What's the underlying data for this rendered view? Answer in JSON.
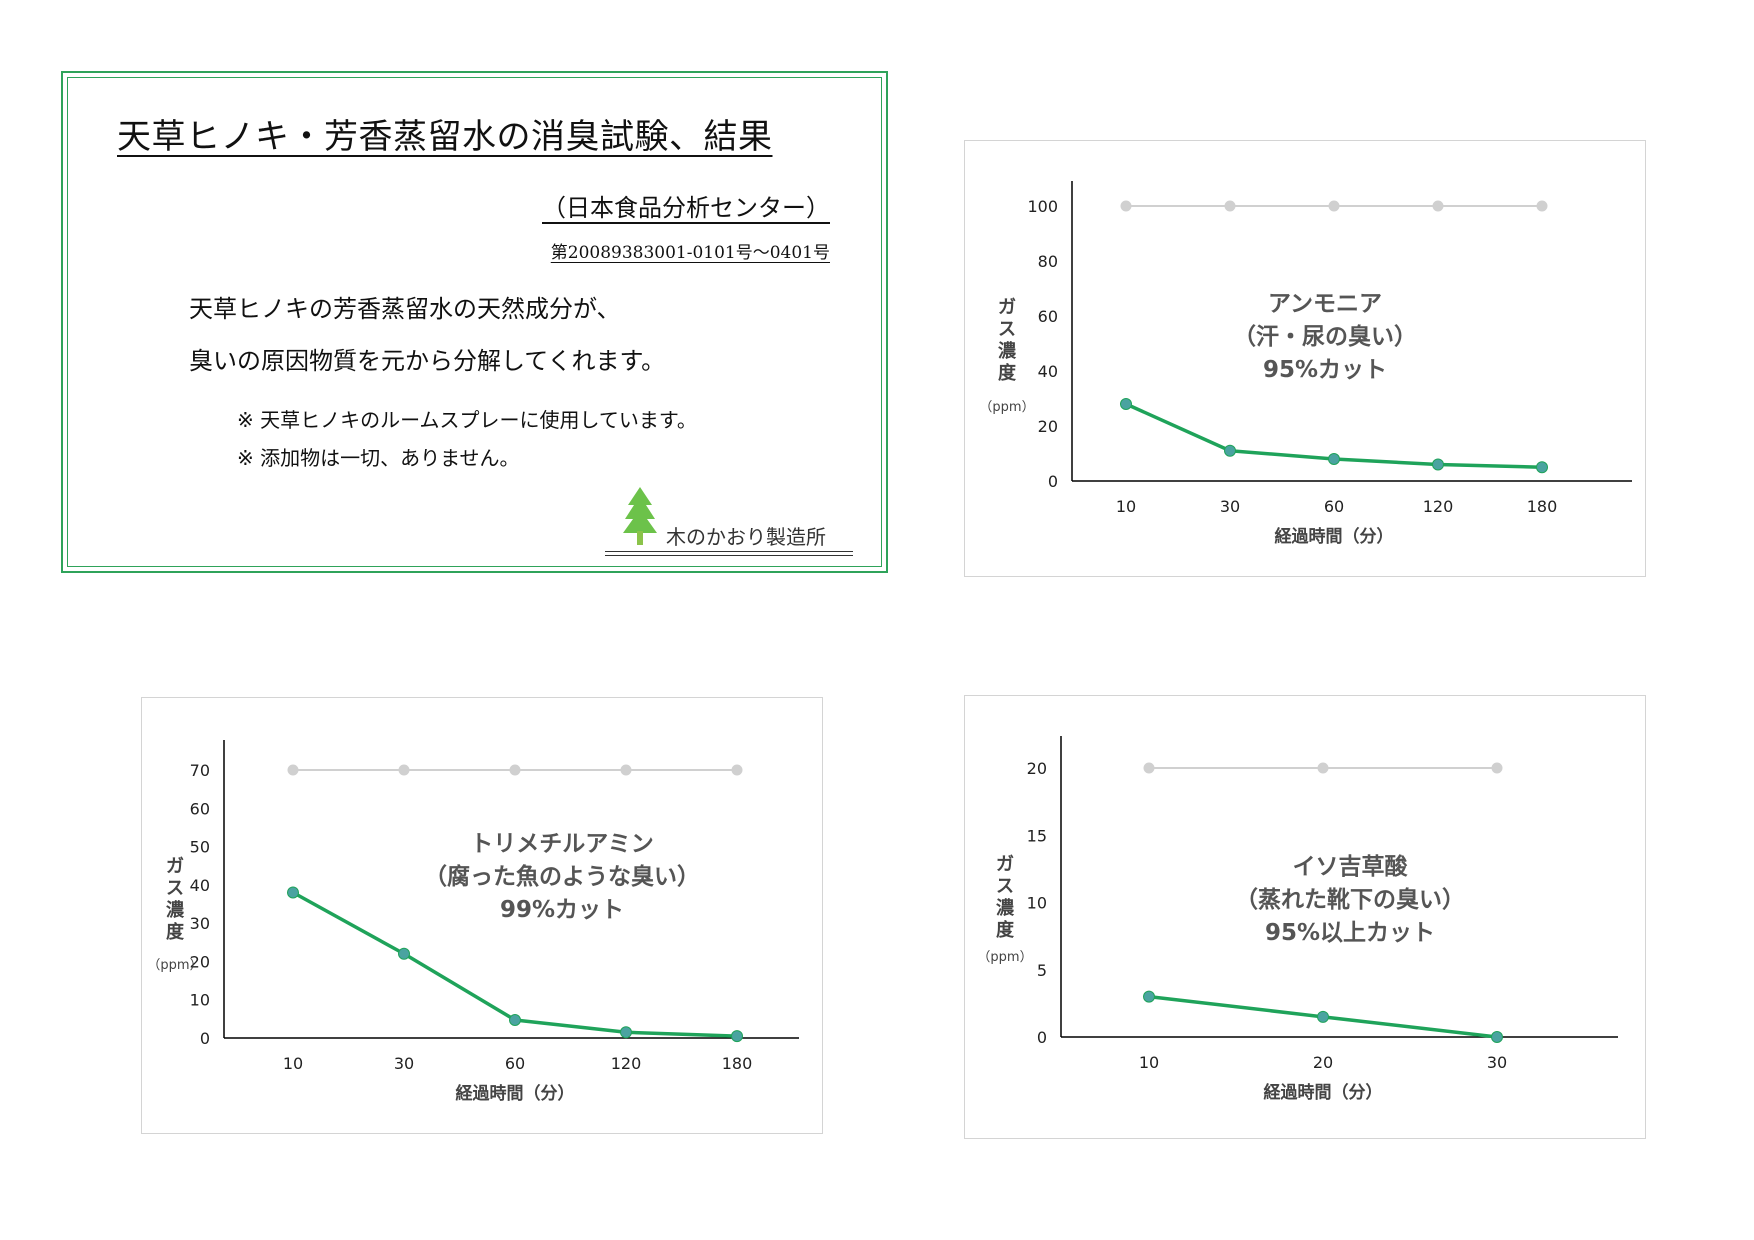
{
  "info_card": {
    "title": "天草ヒノキ・芳香蒸留水の消臭試験、結果",
    "source": "（日本食品分析センター）",
    "report_number": "第20089383001-0101号～0401号",
    "body_line_1": "天草ヒノキの芳香蒸留水の天然成分が、",
    "body_line_2": "臭いの原因物質を元から分解してくれます。",
    "note_1": "※ 天草ヒノキのルームスプレーに使用しています。",
    "note_2": "※ 添加物は一切、ありません。",
    "brand": "木のかおり製造所",
    "logo_icon": "tree-icon"
  },
  "colors": {
    "card_border": "#2fa35a",
    "series_test": "#1fa35a",
    "series_test_marker": "#4aa3a0",
    "series_reference": "#d0d0d0",
    "annotation_text": "#555555",
    "axis": "#000000"
  },
  "chart_data": [
    {
      "type": "line",
      "id": "ammonia",
      "title_lines": [
        "アンモニア",
        "（汗・尿の臭い）",
        "95%カット"
      ],
      "xlabel": "経過時間（分）",
      "ylabel_chars": [
        "ガ",
        "ス",
        "濃",
        "度"
      ],
      "ylabel_unit": "（ppm）",
      "categories": [
        "10",
        "30",
        "60",
        "120",
        "180"
      ],
      "ylim": [
        0,
        100
      ],
      "yticks": [
        "0",
        "20",
        "40",
        "60",
        "80",
        "100"
      ],
      "series": [
        {
          "role": "reference",
          "values": [
            100,
            100,
            100,
            100,
            100
          ]
        },
        {
          "role": "test",
          "values": [
            28,
            11,
            8,
            6,
            5
          ]
        }
      ],
      "grid": false,
      "legend": "none"
    },
    {
      "type": "line",
      "id": "trimethylamine",
      "title_lines": [
        "トリメチルアミン",
        "（腐った魚のような臭い）",
        "99%カット"
      ],
      "xlabel": "経過時間（分）",
      "ylabel_chars": [
        "ガ",
        "ス",
        "濃",
        "度"
      ],
      "ylabel_unit": "（ppm）",
      "categories": [
        "10",
        "30",
        "60",
        "120",
        "180"
      ],
      "ylim": [
        0,
        70
      ],
      "yticks": [
        "0",
        "10",
        "20",
        "30",
        "40",
        "50",
        "60",
        "70"
      ],
      "series": [
        {
          "role": "reference",
          "values": [
            70,
            70,
            70,
            70,
            70
          ]
        },
        {
          "role": "test",
          "values": [
            38,
            22,
            4.7,
            1.5,
            0.5
          ]
        }
      ],
      "grid": false,
      "legend": "none"
    },
    {
      "type": "line",
      "id": "isovaleric-acid",
      "title_lines": [
        "イソ吉草酸",
        "（蒸れた靴下の臭い）",
        "95%以上カット"
      ],
      "xlabel": "経過時間（分）",
      "ylabel_chars": [
        "ガ",
        "ス",
        "濃",
        "度"
      ],
      "ylabel_unit": "（ppm）",
      "categories": [
        "10",
        "20",
        "30"
      ],
      "ylim": [
        0,
        20
      ],
      "yticks": [
        "0",
        "5",
        "10",
        "15",
        "20"
      ],
      "series": [
        {
          "role": "reference",
          "values": [
            20,
            20,
            20
          ]
        },
        {
          "role": "test",
          "values": [
            3,
            1.5,
            0
          ]
        }
      ],
      "grid": false,
      "legend": "none"
    }
  ]
}
